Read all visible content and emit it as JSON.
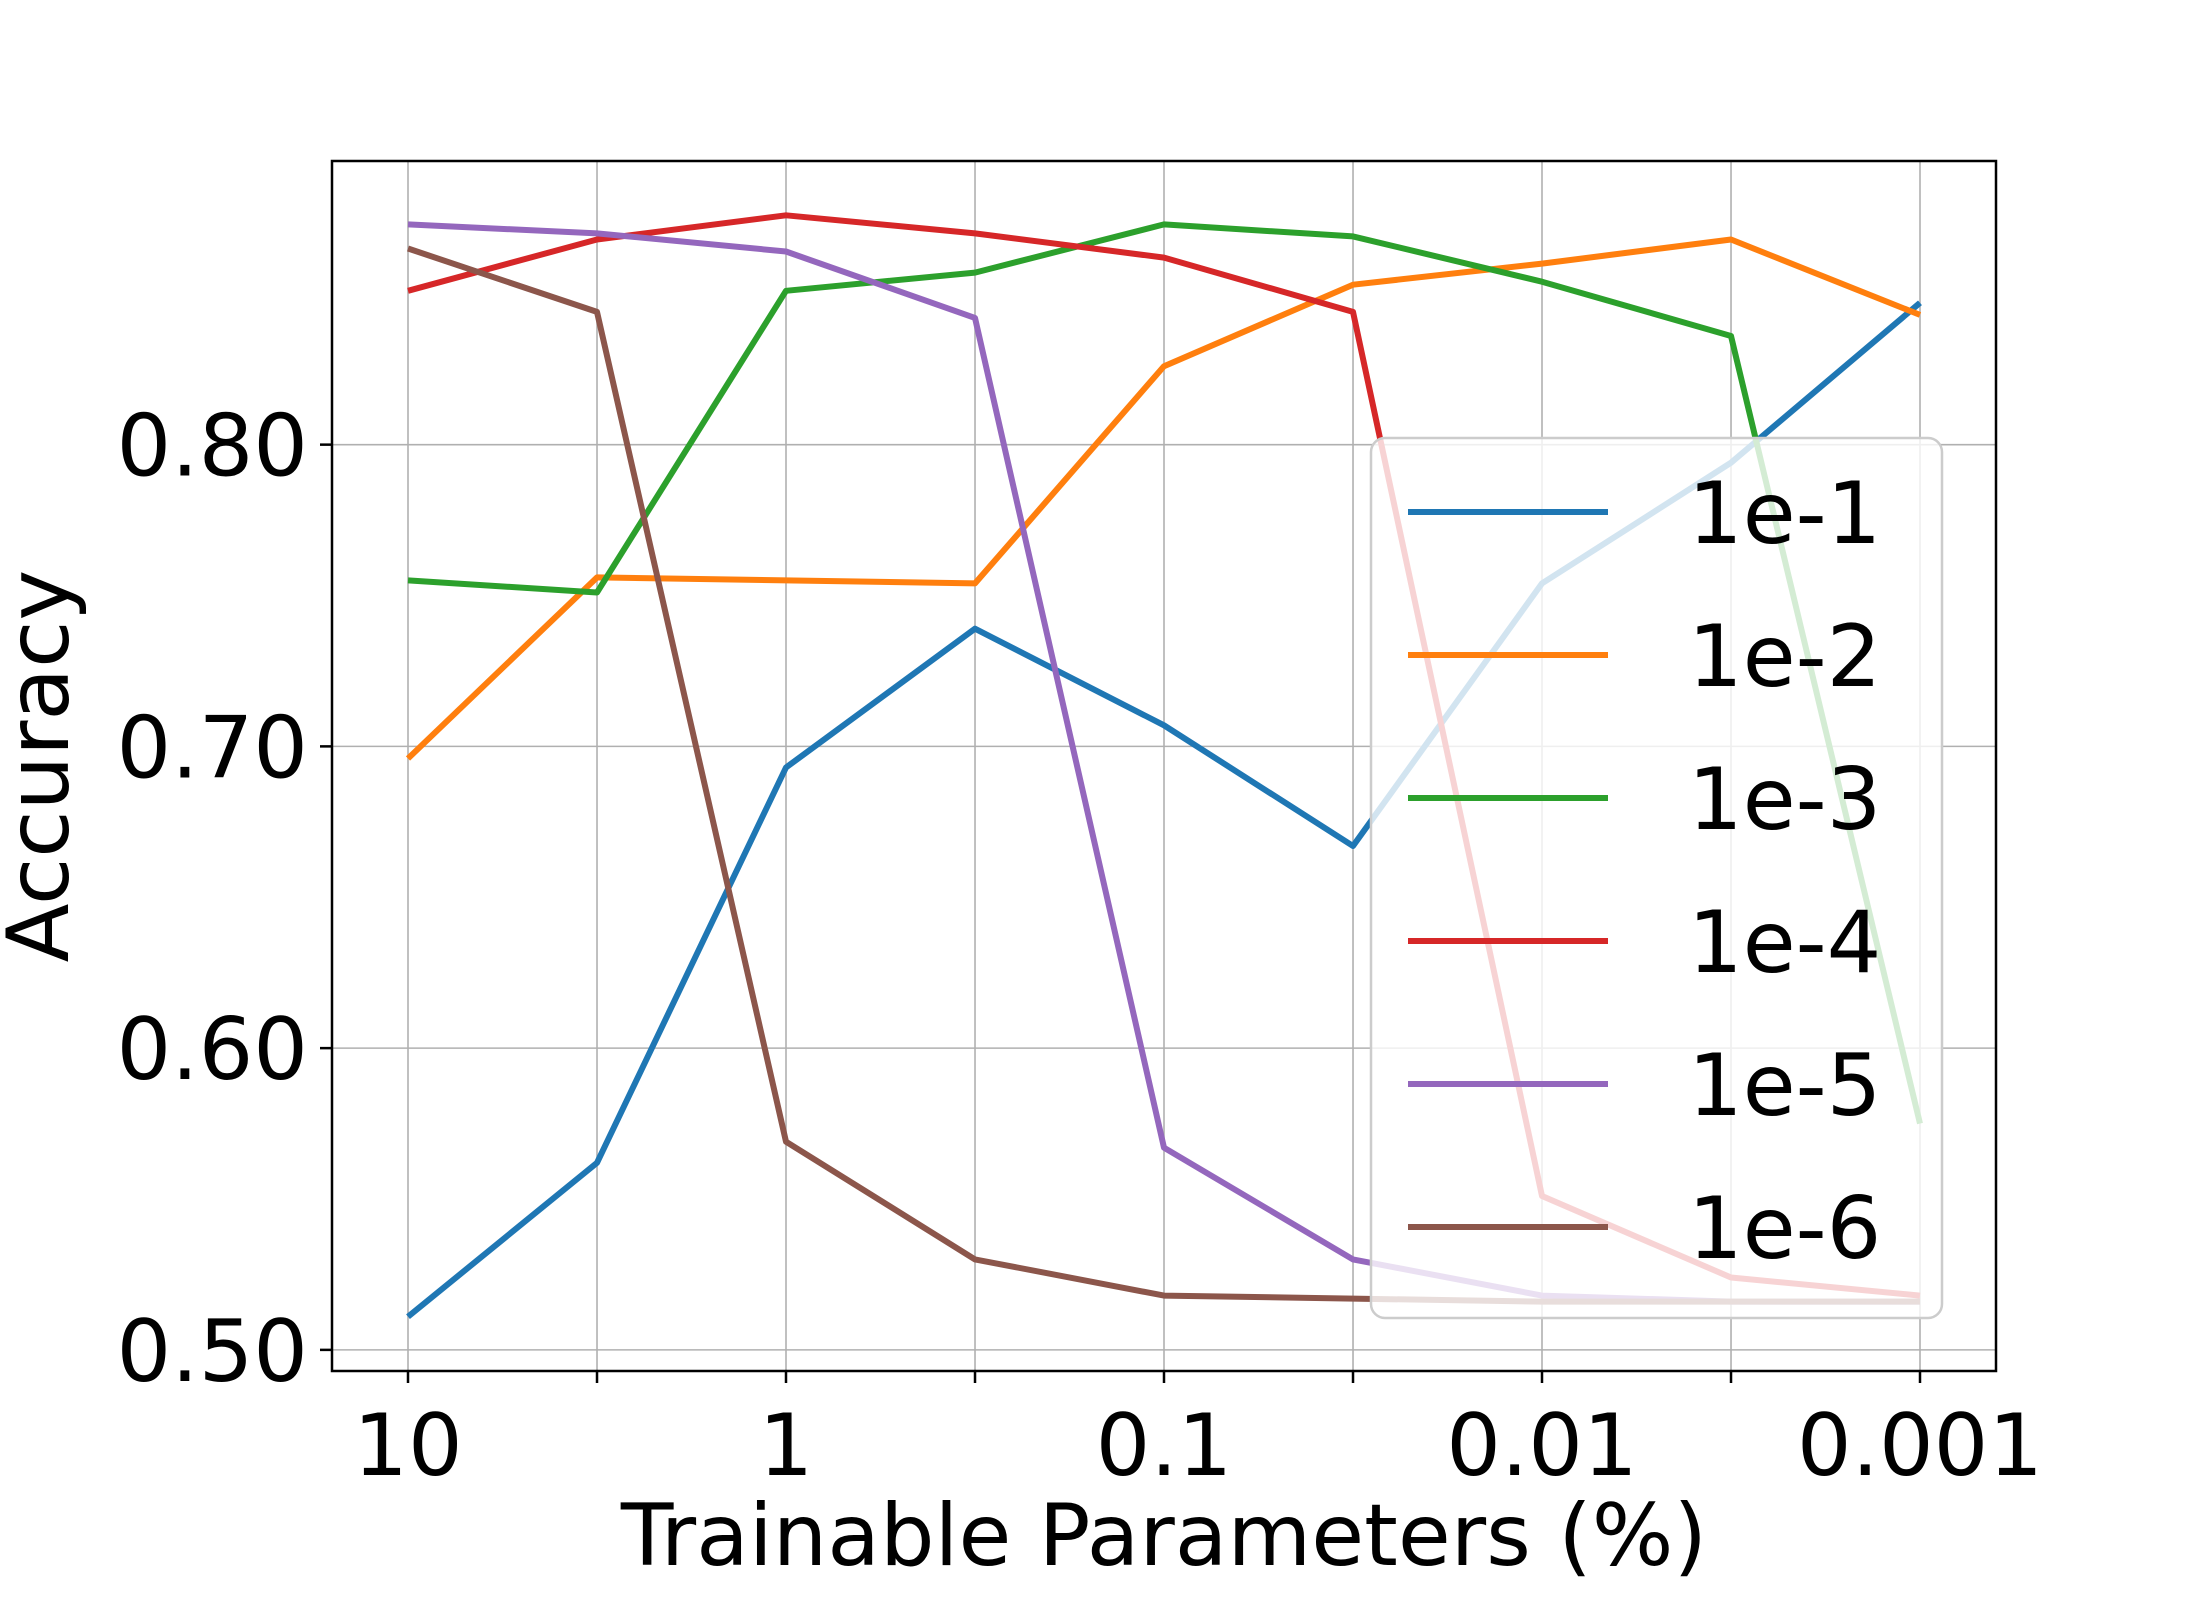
{
  "chart_data": {
    "type": "line",
    "xlabel": "Trainable Parameters (%)",
    "ylabel": "Accuracy",
    "xscale": "log",
    "x_direction": "decreasing",
    "x_ticks": [
      {
        "value": 10,
        "label": "10"
      },
      {
        "value": 1,
        "label": "1"
      },
      {
        "value": 0.1,
        "label": "0.1"
      },
      {
        "value": 0.01,
        "label": "0.01"
      },
      {
        "value": 0.001,
        "label": "0.001"
      }
    ],
    "y_ticks": [
      {
        "value": 0.5,
        "label": "0.50"
      },
      {
        "value": 0.6,
        "label": "0.60"
      },
      {
        "value": 0.7,
        "label": "0.70"
      },
      {
        "value": 0.8,
        "label": "0.80"
      }
    ],
    "xlim": [
      10,
      0.001
    ],
    "ylim": [
      0.493,
      0.894
    ],
    "grid": true,
    "legend_position": "lower-right",
    "x": [
      10,
      3.162,
      1,
      0.3162,
      0.1,
      0.03162,
      0.01,
      0.003162,
      0.001
    ],
    "series": [
      {
        "name": "1e-1",
        "color": "#1f77b4",
        "values": [
          0.511,
          0.562,
          0.693,
          0.739,
          0.707,
          0.667,
          0.754,
          0.794,
          0.847
        ]
      },
      {
        "name": "1e-2",
        "color": "#ff7f0e",
        "values": [
          0.696,
          0.756,
          0.755,
          0.754,
          0.826,
          0.853,
          0.86,
          0.868,
          0.843
        ]
      },
      {
        "name": "1e-3",
        "color": "#2ca02c",
        "values": [
          0.755,
          0.751,
          0.851,
          0.857,
          0.873,
          0.869,
          0.854,
          0.836,
          0.575
        ]
      },
      {
        "name": "1e-4",
        "color": "#d62728",
        "values": [
          0.851,
          0.868,
          0.876,
          0.87,
          0.862,
          0.844,
          0.551,
          0.524,
          0.518
        ]
      },
      {
        "name": "1e-5",
        "color": "#9467bd",
        "values": [
          0.873,
          0.87,
          0.864,
          0.842,
          0.567,
          0.53,
          0.518,
          0.516,
          0.516
        ]
      },
      {
        "name": "1e-6",
        "color": "#8c564b",
        "values": [
          0.865,
          0.844,
          0.569,
          0.53,
          0.518,
          0.517,
          0.516,
          0.516,
          0.516
        ]
      }
    ]
  }
}
